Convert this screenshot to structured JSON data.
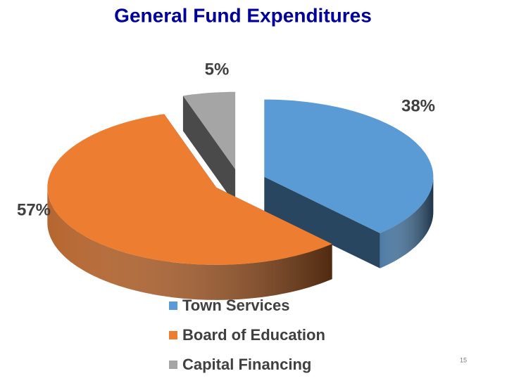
{
  "chart_data": {
    "type": "pie",
    "title": "General Fund Expenditures",
    "categories": [
      "Town Services",
      "Board of Education",
      "Capital Financing"
    ],
    "values": [
      38,
      57,
      5
    ],
    "value_labels": [
      "38%",
      "57%",
      "5%"
    ],
    "colors": [
      "#5b9bd5",
      "#ed7d31",
      "#a5a5a5"
    ],
    "legend": "bottom"
  },
  "slide_number": "15"
}
